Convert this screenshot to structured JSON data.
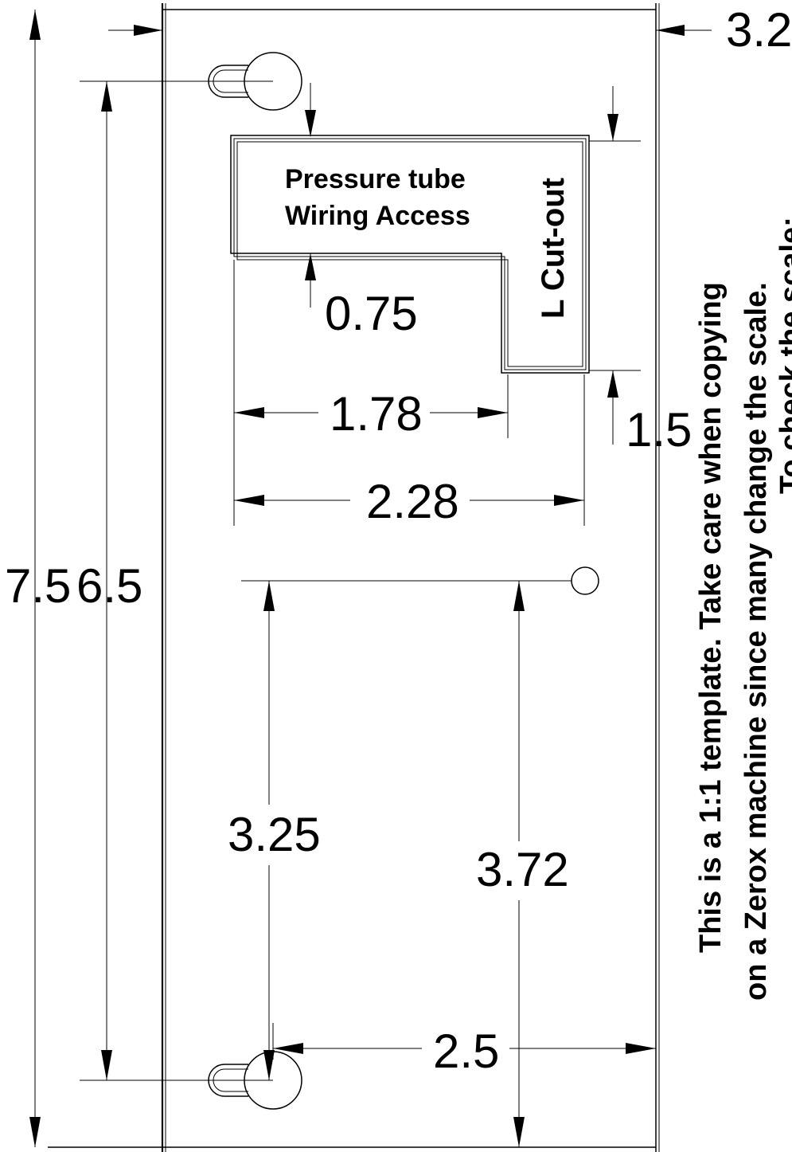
{
  "labels": {
    "access_line1": "Pressure tube",
    "access_line2": "Wiring Access",
    "cutout": "L Cut-out"
  },
  "dimensions": {
    "edge_offset": "3.2",
    "overall_height": "7.5",
    "hole_spacing": "6.5",
    "upper_gap": "0.75",
    "notch_width": "1.78",
    "cutout_width": "2.28",
    "notch_height": "1.5",
    "pin_to_hole": "3.25",
    "pin_to_bottom": "3.72",
    "hole_to_edge": "2.5"
  },
  "note": {
    "line1": "This is a 1:1 template. Take care when copying",
    "line2": "on a Zerox machine since many change the scale.",
    "line3": "To check the scale:"
  }
}
